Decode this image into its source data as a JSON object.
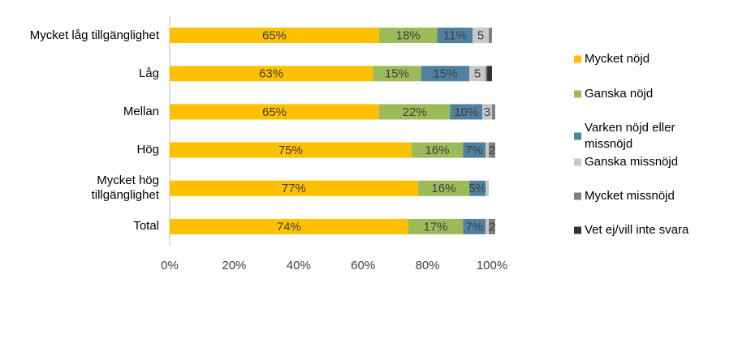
{
  "chart_data": {
    "type": "stacked-bar-horizontal",
    "categories": [
      "Mycket låg tillgänglighet",
      "Låg",
      "Mellan",
      "Hög",
      "Mycket hög\ntillgänglighet",
      "Total"
    ],
    "series": [
      {
        "name": "Mycket nöjd",
        "color": "#FFC000",
        "values": [
          65,
          63,
          65,
          75,
          77,
          74
        ],
        "value_labels": [
          "65%",
          "63%",
          "65%",
          "75%",
          "77%",
          "74%"
        ]
      },
      {
        "name": "Ganska nöjd",
        "color": "#9BBB59",
        "values": [
          18,
          15,
          22,
          16,
          16,
          17
        ],
        "value_labels": [
          "18%",
          "15%",
          "22%",
          "16%",
          "16%",
          "17%"
        ]
      },
      {
        "name": "Varken nöjd eller missnöjd",
        "color": "#4F81A0",
        "values": [
          11,
          15,
          10,
          7,
          5,
          7
        ],
        "value_labels": [
          "11%",
          "15%",
          "10%",
          "7%",
          "5%",
          "7%"
        ]
      },
      {
        "name": "Ganska missnöjd",
        "color": "#C8C8C8",
        "values": [
          5,
          5,
          3,
          1,
          1,
          1
        ],
        "value_labels": [
          "5",
          "5",
          "3",
          null,
          null,
          null
        ]
      },
      {
        "name": "Mycket missnöjd",
        "color": "#808080",
        "values": [
          1,
          0.5,
          1,
          2,
          0,
          2
        ],
        "value_labels": [
          null,
          null,
          null,
          "2",
          null,
          "2"
        ]
      },
      {
        "name": "Vet ej/vill inte svara",
        "color": "#333333",
        "values": [
          0,
          1.5,
          0,
          0,
          0,
          0
        ],
        "value_labels": [
          null,
          null,
          null,
          null,
          null,
          null
        ]
      }
    ],
    "xlim": [
      0,
      100
    ],
    "xticks": [
      {
        "value": 0,
        "label": "0%"
      },
      {
        "value": 20,
        "label": "20%"
      },
      {
        "value": 40,
        "label": "40%"
      },
      {
        "value": 60,
        "label": "60%"
      },
      {
        "value": 80,
        "label": "80%"
      },
      {
        "value": 100,
        "label": "100%"
      }
    ],
    "legend": "right"
  }
}
